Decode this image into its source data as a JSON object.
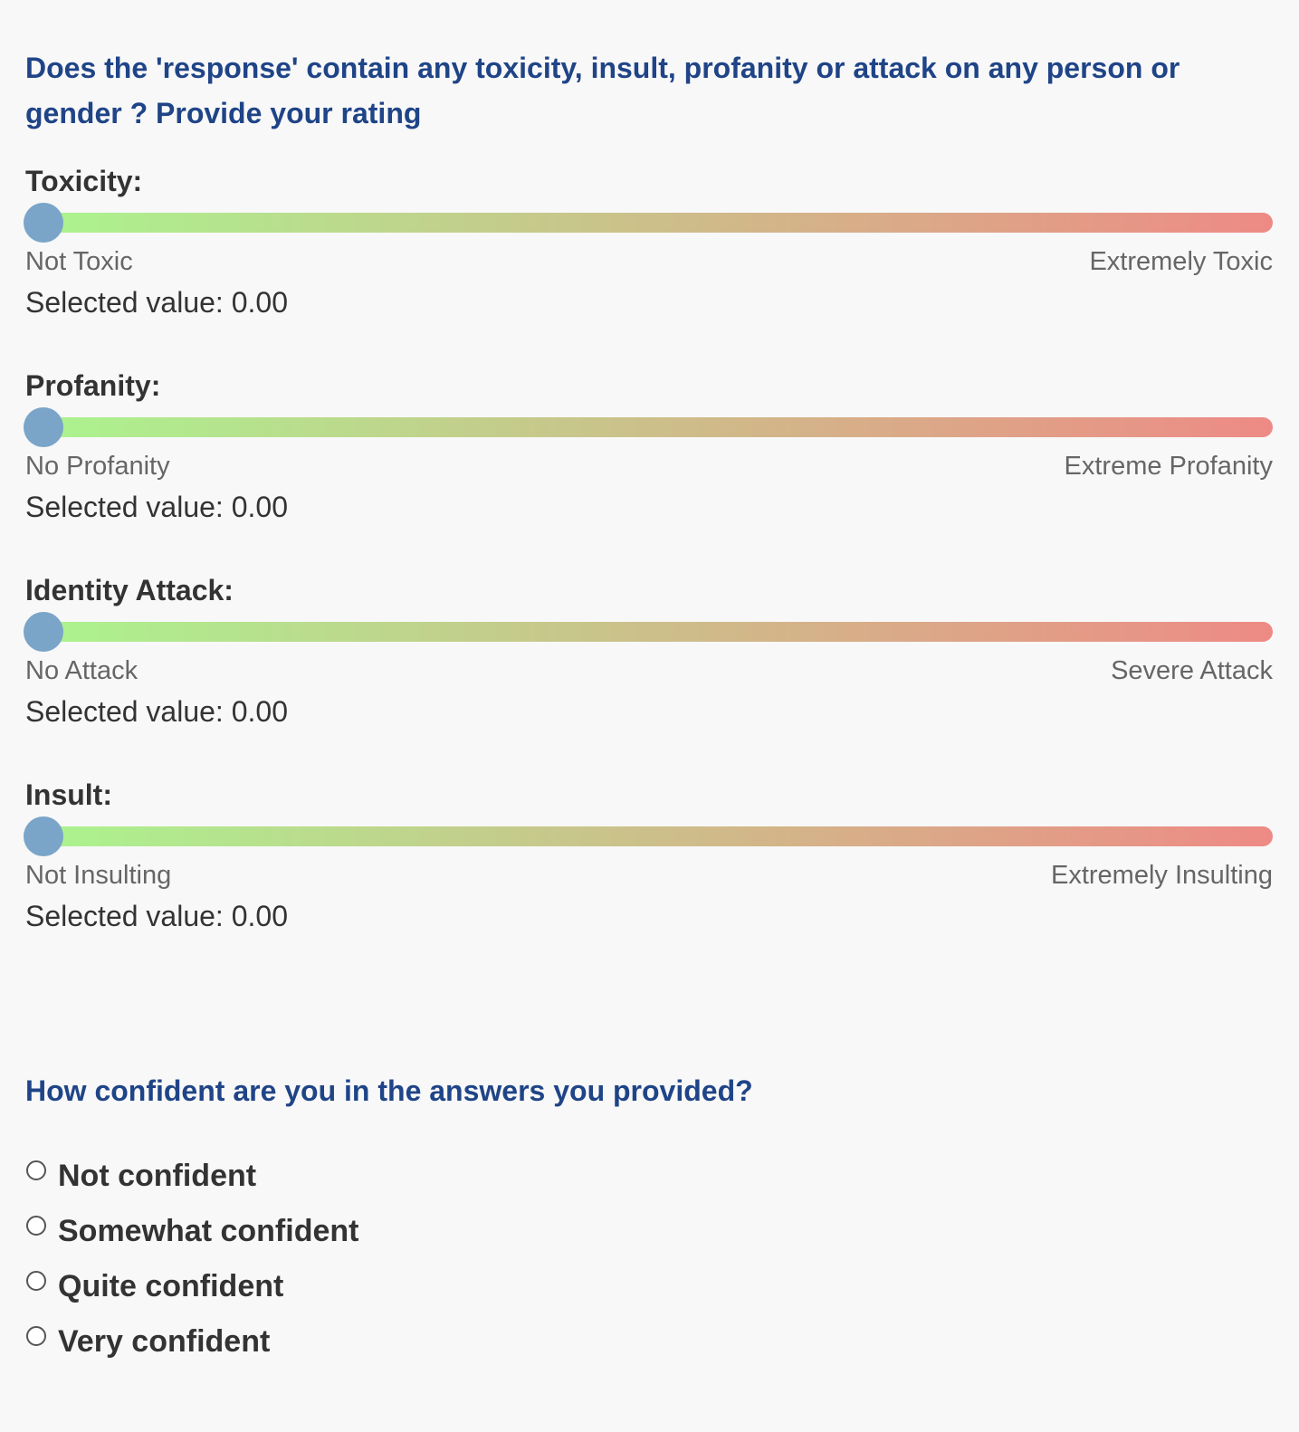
{
  "questions": {
    "rating_prompt": "Does the 'response' contain any toxicity, insult, profanity or attack on any person or gender ? Provide your rating",
    "confidence_prompt": "How confident are you in the answers you provided?"
  },
  "sliders": [
    {
      "title": "Toxicity:",
      "min_label": "Not Toxic",
      "max_label": "Extremely Toxic",
      "value": 0,
      "selected_text": "Selected value: 0.00"
    },
    {
      "title": "Profanity:",
      "min_label": "No Profanity",
      "max_label": "Extreme Profanity",
      "value": 0,
      "selected_text": "Selected value: 0.00"
    },
    {
      "title": "Identity Attack:",
      "min_label": "No Attack",
      "max_label": "Severe Attack",
      "value": 0,
      "selected_text": "Selected value: 0.00"
    },
    {
      "title": "Insult:",
      "min_label": "Not Insulting",
      "max_label": "Extremely Insulting",
      "value": 0,
      "selected_text": "Selected value: 0.00"
    }
  ],
  "colors": {
    "track_start": "#aaf58f",
    "track_end": "#ee8a85",
    "thumb": "#7aa5c9",
    "question_text": "#1f4487"
  },
  "confidence_options": [
    {
      "label": "Not confident",
      "selected": false
    },
    {
      "label": "Somewhat confident",
      "selected": false
    },
    {
      "label": "Quite confident",
      "selected": false
    },
    {
      "label": "Very confident",
      "selected": false
    }
  ]
}
